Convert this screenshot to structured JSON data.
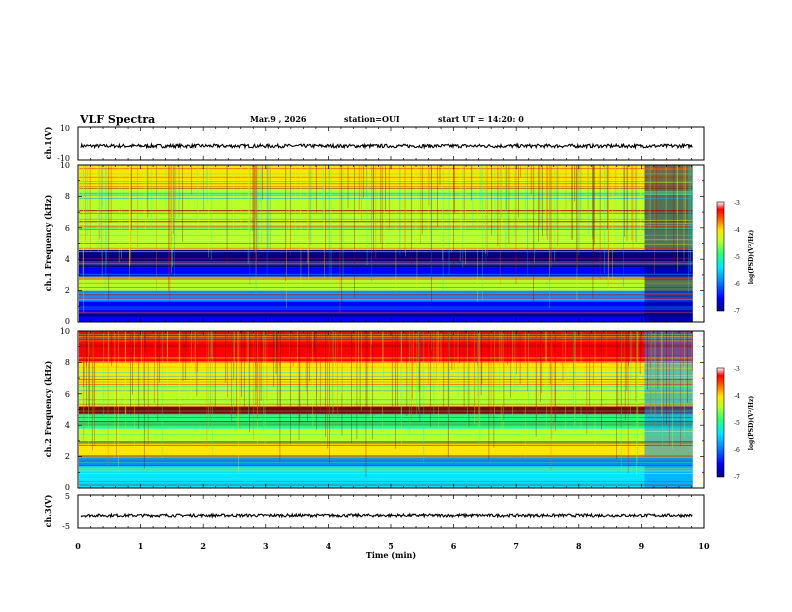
{
  "header": {
    "title": "VLF Spectra",
    "date": "Mar.9 , 2026",
    "station": "station=OUI",
    "start": "start UT = 14:20: 0"
  },
  "colors": {
    "background": "#ffffff",
    "axis": "#000000",
    "trace": "#000000",
    "colormap": [
      "#00007a",
      "#0000ff",
      "#0a8bff",
      "#00e6ff",
      "#28ff7a",
      "#b8ff2a",
      "#ffe600",
      "#ff6600",
      "#ff0000",
      "#7f0000"
    ]
  },
  "chart_data": [
    {
      "type": "line",
      "name": "ch1-waveform",
      "ylabel": "ch.1(V)",
      "ylim": [
        -10,
        10
      ],
      "yticks": [
        "10",
        "-10"
      ],
      "x": [
        0,
        10
      ],
      "xlim": [
        0,
        10
      ],
      "baseline_mean": -1.5,
      "trace_description_note": "noisy waveform around mean",
      "trace_end_x": 9.82
    },
    {
      "type": "heatmap",
      "name": "ch1-spectrogram",
      "ylabel": "ch.1 Frequency (kHz)",
      "ylim": [
        0,
        10
      ],
      "yticks": [
        "0",
        "2",
        "4",
        "6",
        "8",
        "10"
      ],
      "xlim": [
        0,
        10
      ],
      "data_end_x": 9.82,
      "colorbar": {
        "label": "log(PSD)(V²/Hz)",
        "range": [
          -7,
          -3
        ],
        "ticks": [
          "-3",
          "-4",
          "-5",
          "-6",
          "-7"
        ]
      },
      "bands": [
        {
          "from": 0.0,
          "to": 0.35,
          "level": -6.8
        },
        {
          "from": 0.35,
          "to": 0.55,
          "level": -7.2
        },
        {
          "from": 0.55,
          "to": 1.3,
          "level": -6.7
        },
        {
          "from": 1.3,
          "to": 2.0,
          "level": -6.2
        },
        {
          "from": 2.0,
          "to": 2.9,
          "level": -4.9
        },
        {
          "from": 2.9,
          "to": 3.5,
          "level": -6.8
        },
        {
          "from": 3.5,
          "to": 4.6,
          "level": -7.0
        },
        {
          "from": 4.6,
          "to": 5.2,
          "level": -4.9
        },
        {
          "from": 5.2,
          "to": 6.2,
          "level": -5.3
        },
        {
          "from": 6.2,
          "to": 8.5,
          "level": -5.0
        },
        {
          "from": 8.5,
          "to": 10.0,
          "level": -4.7
        }
      ]
    },
    {
      "type": "heatmap",
      "name": "ch2-spectrogram",
      "ylabel": "ch.2 Frequency (kHz)",
      "ylim": [
        0,
        10
      ],
      "yticks": [
        "0",
        "2",
        "4",
        "6",
        "8",
        "10"
      ],
      "xlim": [
        0,
        10
      ],
      "data_end_x": 9.82,
      "colorbar": {
        "label": "log(PSD)(V²/Hz)",
        "range": [
          -7,
          -3
        ],
        "ticks": [
          "-3",
          "-4",
          "-5",
          "-6",
          "-7"
        ]
      },
      "bands": [
        {
          "from": 0.0,
          "to": 0.6,
          "level": -5.8
        },
        {
          "from": 0.6,
          "to": 1.4,
          "level": -5.9
        },
        {
          "from": 1.4,
          "to": 2.0,
          "level": -6.3
        },
        {
          "from": 2.0,
          "to": 3.0,
          "level": -4.6
        },
        {
          "from": 3.0,
          "to": 3.8,
          "level": -5.1
        },
        {
          "from": 3.8,
          "to": 4.7,
          "level": -5.7
        },
        {
          "from": 4.7,
          "to": 5.2,
          "level": -3.6
        },
        {
          "from": 5.2,
          "to": 6.4,
          "level": -5.0
        },
        {
          "from": 6.4,
          "to": 8.0,
          "level": -4.7
        },
        {
          "from": 8.0,
          "to": 10.0,
          "level": -3.9
        }
      ]
    },
    {
      "type": "line",
      "name": "ch3-waveform",
      "ylabel": "ch.3(V)",
      "ylim": [
        -5,
        5
      ],
      "yticks": [
        "5",
        "-5"
      ],
      "xlim": [
        0,
        10
      ],
      "baseline_mean": -1.2,
      "trace_end_x": 9.82,
      "xlabel": "Time (min)",
      "xticks": [
        "0",
        "1",
        "2",
        "3",
        "4",
        "5",
        "6",
        "7",
        "8",
        "9",
        "10"
      ]
    }
  ]
}
